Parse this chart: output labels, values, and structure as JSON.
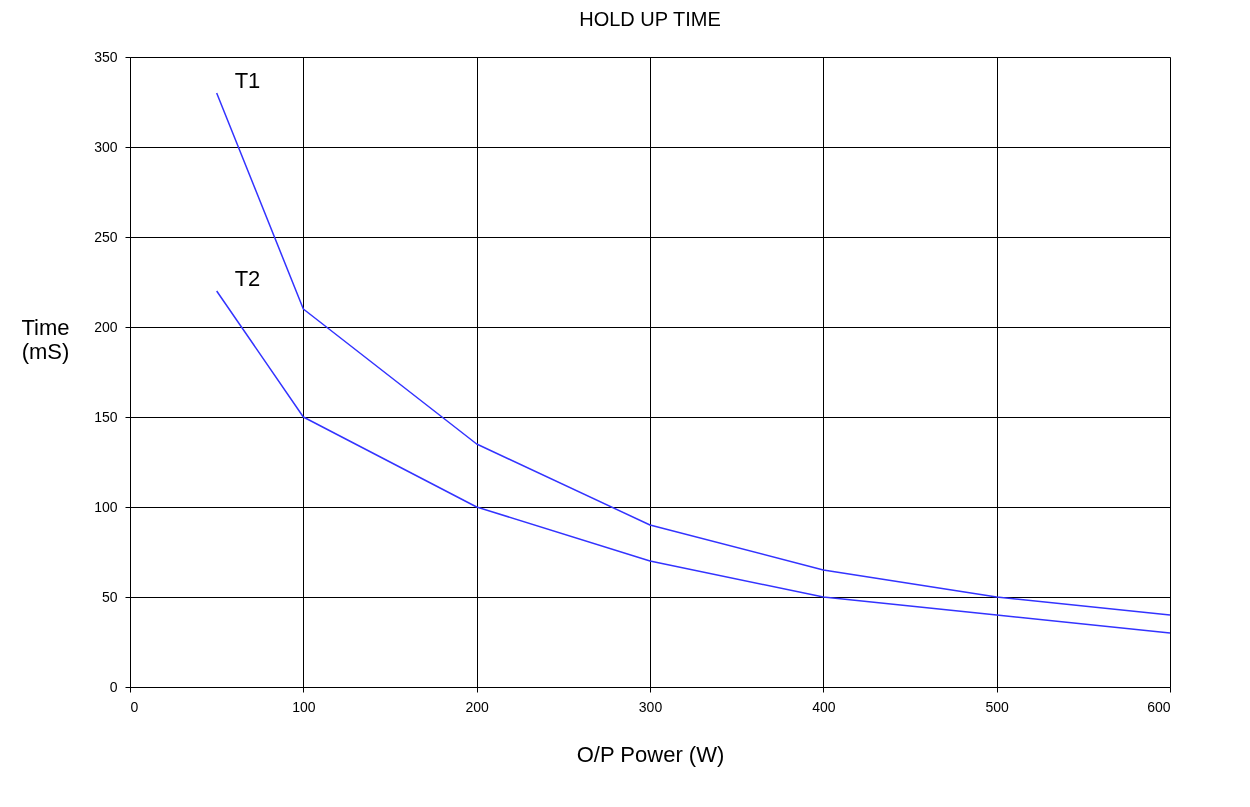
{
  "chart_data": {
    "type": "line",
    "title": "HOLD UP TIME",
    "xlabel": "O/P Power (W)",
    "ylabel": "Time (mS)",
    "x": [
      50,
      100,
      200,
      300,
      400,
      500,
      600
    ],
    "series": [
      {
        "name": "T1",
        "color": "#3333ff",
        "values": [
          330,
          210,
          135,
          90,
          65,
          50,
          40
        ]
      },
      {
        "name": "T2",
        "color": "#3333ff",
        "values": [
          220,
          150,
          100,
          70,
          50,
          40,
          30
        ]
      }
    ],
    "xlim": [
      0,
      600
    ],
    "xticks": [
      0,
      100,
      200,
      300,
      400,
      500,
      600
    ],
    "ylim": [
      0,
      350
    ],
    "yticks": [
      0,
      50,
      100,
      150,
      200,
      250,
      300,
      350
    ],
    "grid": true,
    "legend": false,
    "marker": "none",
    "line_style": "solid"
  }
}
